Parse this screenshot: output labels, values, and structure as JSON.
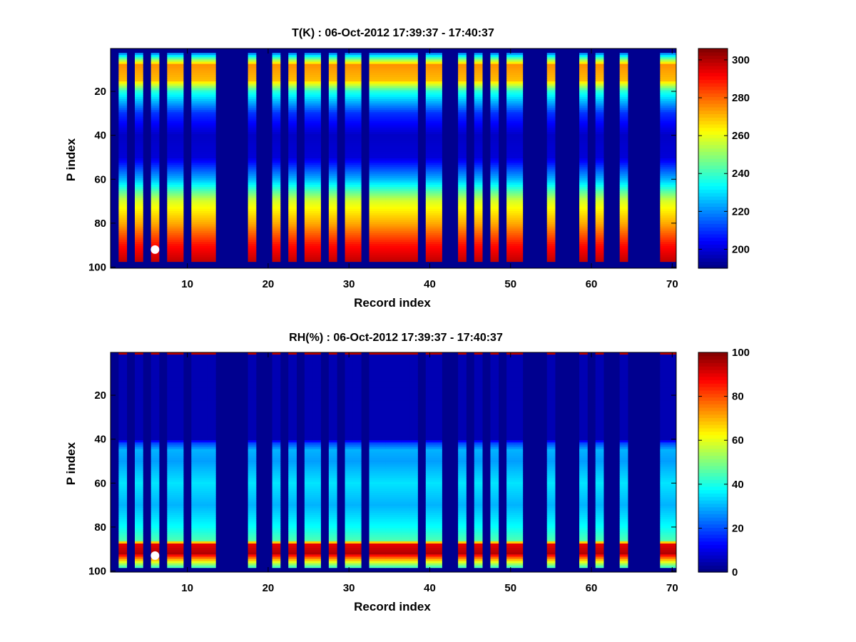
{
  "chart_data": [
    {
      "type": "heatmap",
      "title": "T(K) : 06-Oct-2012 17:39:37 - 17:40:37",
      "xlabel": "Record index",
      "ylabel": "P index",
      "xlim": [
        0.5,
        70.5
      ],
      "ylim": [
        0.5,
        100.5
      ],
      "y_direction": "reversed",
      "xticks": [
        10,
        20,
        30,
        40,
        50,
        60,
        70
      ],
      "yticks": [
        20,
        40,
        60,
        80,
        100
      ],
      "colorbar": {
        "label": "",
        "clim": [
          190,
          306
        ],
        "ticks": [
          200,
          220,
          240,
          260,
          280,
          300
        ],
        "colormap": "jet"
      },
      "data_columns": [
        2,
        4,
        6,
        8,
        9,
        11,
        12,
        13,
        18,
        21,
        23,
        25,
        26,
        28,
        30,
        31,
        33,
        34,
        35,
        36,
        37,
        38,
        40,
        41,
        44,
        46,
        48,
        50,
        51,
        55,
        59,
        61,
        64,
        69,
        70
      ],
      "profile_levels": [
        3,
        8,
        15,
        20,
        30,
        40,
        50,
        60,
        70,
        80,
        90,
        97
      ],
      "profile_values": [
        222,
        275,
        270,
        238,
        210,
        198,
        200,
        225,
        258,
        272,
        290,
        298
      ],
      "marker": {
        "record": 6,
        "p_index": 92,
        "color": "#ffffff"
      }
    },
    {
      "type": "heatmap",
      "title": "RH(%) : 06-Oct-2012 17:39:37 - 17:40:37",
      "xlabel": "Record index",
      "ylabel": "P index",
      "xlim": [
        0.5,
        70.5
      ],
      "ylim": [
        0.5,
        100.5
      ],
      "y_direction": "reversed",
      "xticks": [
        10,
        20,
        30,
        40,
        50,
        60,
        70
      ],
      "yticks": [
        20,
        40,
        60,
        80,
        100
      ],
      "colorbar": {
        "label": "",
        "clim": [
          0,
          100
        ],
        "ticks": [
          0,
          20,
          40,
          60,
          80,
          100
        ],
        "colormap": "jet"
      },
      "data_columns": [
        2,
        4,
        6,
        8,
        9,
        11,
        12,
        13,
        18,
        21,
        23,
        25,
        26,
        28,
        30,
        31,
        33,
        34,
        35,
        36,
        37,
        38,
        40,
        41,
        44,
        46,
        48,
        50,
        51,
        55,
        59,
        61,
        64,
        69,
        70
      ],
      "profile_levels": [
        1,
        2,
        40,
        42,
        45,
        50,
        60,
        70,
        80,
        86,
        88,
        92,
        96,
        98
      ],
      "profile_values": [
        95,
        5,
        5,
        20,
        30,
        28,
        35,
        30,
        38,
        45,
        90,
        95,
        60,
        45
      ],
      "marker": {
        "record": 6,
        "p_index": 93,
        "color": "#ffffff"
      }
    }
  ]
}
